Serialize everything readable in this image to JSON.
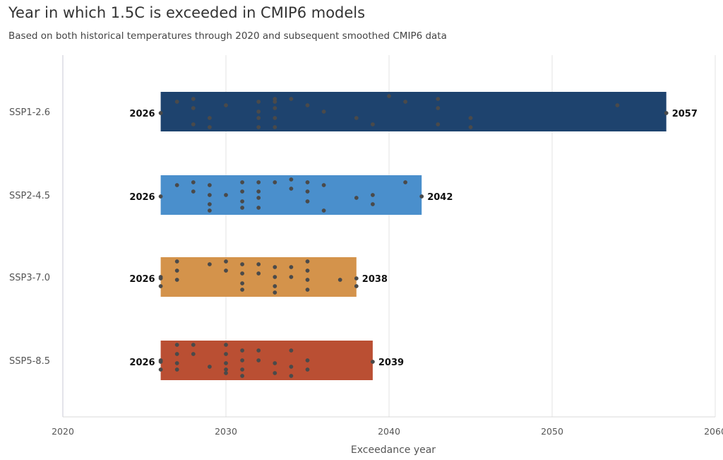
{
  "title": "Year in which 1.5C is exceeded in CMIP6 models",
  "subtitle": "Based on both historical temperatures through 2020 and subsequent smoothed CMIP6 data",
  "chart_data": {
    "type": "bar",
    "title": "Year in which 1.5C is exceeded in CMIP6 models",
    "subtitle": "Based on both historical temperatures through 2020 and subsequent smoothed CMIP6 data",
    "xlabel": "Exceedance year",
    "ylabel": "",
    "xlim": [
      2020,
      2060
    ],
    "xticks": [
      2020,
      2030,
      2040,
      2050,
      2060
    ],
    "grid": "vertical",
    "orientation": "horizontal",
    "categories": [
      "SSP1-2.6",
      "SSP2-4.5",
      "SSP3-7.0",
      "SSP5-8.5"
    ],
    "ranges": [
      {
        "category": "SSP1-2.6",
        "start": 2026,
        "end": 2057,
        "color": "#1e436e"
      },
      {
        "category": "SSP2-4.5",
        "start": 2026,
        "end": 2042,
        "color": "#4a8fcc"
      },
      {
        "category": "SSP3-7.0",
        "start": 2026,
        "end": 2038,
        "color": "#d4934b"
      },
      {
        "category": "SSP5-8.5",
        "start": 2026,
        "end": 2039,
        "color": "#ba4f33"
      }
    ],
    "points": [
      [
        2026,
        2027,
        2028,
        2028,
        2028,
        2029,
        2029,
        2030,
        2032,
        2032,
        2032,
        2032,
        2033,
        2033,
        2033,
        2033,
        2033,
        2034,
        2035,
        2036,
        2038,
        2039,
        2040,
        2041,
        2043,
        2043,
        2043,
        2045,
        2045,
        2054,
        2057
      ],
      [
        2026,
        2027,
        2028,
        2028,
        2029,
        2029,
        2029,
        2029,
        2030,
        2031,
        2031,
        2031,
        2031,
        2032,
        2032,
        2032,
        2032,
        2033,
        2034,
        2034,
        2035,
        2035,
        2035,
        2036,
        2036,
        2038,
        2039,
        2039,
        2041,
        2042
      ],
      [
        2026,
        2026,
        2026,
        2027,
        2027,
        2027,
        2029,
        2030,
        2030,
        2031,
        2031,
        2031,
        2031,
        2032,
        2032,
        2033,
        2033,
        2033,
        2033,
        2034,
        2034,
        2035,
        2035,
        2035,
        2035,
        2037,
        2038,
        2038
      ],
      [
        2026,
        2026,
        2026,
        2027,
        2027,
        2027,
        2027,
        2028,
        2028,
        2029,
        2030,
        2030,
        2030,
        2030,
        2030,
        2031,
        2031,
        2031,
        2031,
        2032,
        2032,
        2033,
        2033,
        2034,
        2034,
        2034,
        2035,
        2035,
        2039
      ]
    ]
  }
}
